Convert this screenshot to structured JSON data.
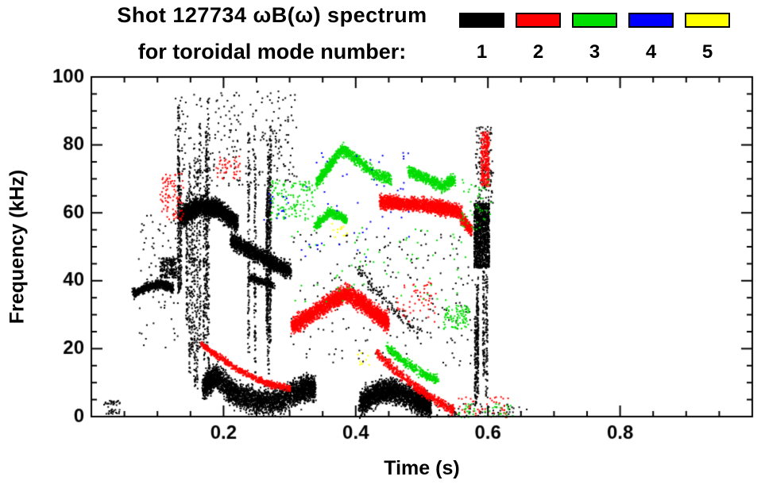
{
  "chart_data": {
    "type": "scatter",
    "title": "Shot 127734 ωB(ω) spectrum",
    "subtitle": "for toroidal mode number:",
    "xlabel": "Time (s)",
    "ylabel": "Frequency (kHz)",
    "xlim": [
      0.0,
      1.0
    ],
    "ylim": [
      0,
      100
    ],
    "xticks": [
      0.2,
      0.4,
      0.6,
      0.8
    ],
    "yticks": [
      0,
      20,
      40,
      60,
      80,
      100
    ],
    "x_minor_step": 0.05,
    "y_minor_step": 5,
    "legend_position": "top-right",
    "grid": false,
    "legend": [
      {
        "label": "1",
        "color": "#000000"
      },
      {
        "label": "2",
        "color": "#ff0000"
      },
      {
        "label": "3",
        "color": "#00dd00"
      },
      {
        "label": "4",
        "color": "#0000ff"
      },
      {
        "label": "5",
        "color": "#ffff00"
      }
    ],
    "features": [
      {
        "mode": 1,
        "shape": "specks",
        "t": [
          0.018,
          0.042
        ],
        "f": [
          1,
          5
        ],
        "n": 45,
        "size": 2
      },
      {
        "mode": 1,
        "shape": "path",
        "pts": [
          [
            0.062,
            36.5
          ],
          [
            0.085,
            38.5
          ],
          [
            0.105,
            39.2
          ],
          [
            0.122,
            38
          ]
        ],
        "sigma": 1.3,
        "n": 700,
        "size": 2
      },
      {
        "mode": 1,
        "shape": "blob",
        "t": [
          0.103,
          0.128
        ],
        "f": [
          41,
          47
        ],
        "n": 200,
        "size": 2
      },
      {
        "mode": 1,
        "shape": "vstreaks",
        "t": [
          0.105,
          0.178
        ],
        "f": [
          8,
          96
        ],
        "k": 13,
        "n": 1300,
        "size": 2
      },
      {
        "mode": 1,
        "shape": "specks",
        "t": [
          0.125,
          0.31
        ],
        "f": [
          68,
          96
        ],
        "n": 260,
        "size": 2
      },
      {
        "mode": 1,
        "shape": "path",
        "pts": [
          [
            0.134,
            59
          ],
          [
            0.16,
            62
          ],
          [
            0.19,
            61.5
          ],
          [
            0.22,
            57
          ]
        ],
        "sigma": 2.6,
        "n": 2300,
        "size": 2
      },
      {
        "mode": 1,
        "shape": "path",
        "pts": [
          [
            0.21,
            52
          ],
          [
            0.24,
            49
          ],
          [
            0.272,
            45.5
          ],
          [
            0.3,
            43
          ]
        ],
        "sigma": 2.2,
        "n": 1500,
        "size": 2
      },
      {
        "mode": 1,
        "shape": "path",
        "pts": [
          [
            0.238,
            41
          ],
          [
            0.275,
            39
          ]
        ],
        "sigma": 1.2,
        "n": 250,
        "size": 2
      },
      {
        "mode": 1,
        "shape": "path",
        "pts": [
          [
            0.168,
            9
          ],
          [
            0.188,
            12
          ],
          [
            0.215,
            7
          ],
          [
            0.25,
            4.5
          ],
          [
            0.285,
            5
          ],
          [
            0.315,
            8
          ],
          [
            0.337,
            9
          ]
        ],
        "sigma": 3.6,
        "n": 3200,
        "size": 2
      },
      {
        "mode": 1,
        "shape": "vstreaks",
        "t": [
          0.234,
          0.278
        ],
        "f": [
          12,
          90
        ],
        "k": 7,
        "n": 900,
        "size": 2
      },
      {
        "mode": 1,
        "shape": "specks",
        "t": [
          0.3,
          0.58
        ],
        "f": [
          15,
          55
        ],
        "n": 220,
        "size": 2
      },
      {
        "mode": 1,
        "shape": "path",
        "pts": [
          [
            0.4,
            44
          ],
          [
            0.45,
            33
          ],
          [
            0.5,
            24
          ]
        ],
        "sigma": 2.0,
        "n": 130,
        "size": 2
      },
      {
        "mode": 1,
        "shape": "path",
        "pts": [
          [
            0.405,
            4
          ],
          [
            0.43,
            7
          ],
          [
            0.458,
            8
          ],
          [
            0.49,
            5
          ],
          [
            0.512,
            3
          ]
        ],
        "sigma": 3.2,
        "n": 2500,
        "size": 2
      },
      {
        "mode": 1,
        "shape": "blob",
        "t": [
          0.578,
          0.601
        ],
        "f": [
          44,
          63
        ],
        "n": 1200,
        "size": 2
      },
      {
        "mode": 1,
        "shape": "vstreaks",
        "t": [
          0.578,
          0.602
        ],
        "f": [
          2,
          44
        ],
        "k": 5,
        "n": 450,
        "size": 2
      },
      {
        "mode": 1,
        "shape": "specks",
        "t": [
          0.58,
          0.607
        ],
        "f": [
          63,
          86
        ],
        "n": 130,
        "size": 2
      },
      {
        "mode": 1,
        "shape": "specks",
        "t": [
          0.52,
          0.66
        ],
        "f": [
          0,
          4
        ],
        "n": 60,
        "size": 2
      },
      {
        "mode": 1,
        "shape": "specks",
        "t": [
          0.07,
          0.13
        ],
        "f": [
          20,
          60
        ],
        "n": 80,
        "size": 2
      },
      {
        "mode": 2,
        "shape": "path",
        "pts": [
          [
            0.166,
            21.5
          ],
          [
            0.19,
            18
          ],
          [
            0.222,
            14
          ],
          [
            0.252,
            11
          ],
          [
            0.275,
            9.5
          ],
          [
            0.3,
            8.5
          ]
        ],
        "sigma": 0.9,
        "n": 700,
        "size": 2
      },
      {
        "mode": 2,
        "shape": "specks",
        "t": [
          0.103,
          0.138
        ],
        "f": [
          58,
          72
        ],
        "n": 90,
        "size": 2
      },
      {
        "mode": 2,
        "shape": "specks",
        "t": [
          0.188,
          0.225
        ],
        "f": [
          70,
          77
        ],
        "n": 45,
        "size": 2
      },
      {
        "mode": 2,
        "shape": "path",
        "pts": [
          [
            0.302,
            27
          ],
          [
            0.33,
            30
          ],
          [
            0.36,
            34
          ],
          [
            0.385,
            36.5
          ],
          [
            0.41,
            33.5
          ],
          [
            0.432,
            30
          ],
          [
            0.448,
            28
          ]
        ],
        "sigma": 2.4,
        "n": 2700,
        "size": 2
      },
      {
        "mode": 2,
        "shape": "path",
        "pts": [
          [
            0.436,
            63.5
          ],
          [
            0.47,
            63
          ],
          [
            0.52,
            62
          ],
          [
            0.558,
            60.5
          ]
        ],
        "sigma": 1.9,
        "n": 2000,
        "size": 2
      },
      {
        "mode": 2,
        "shape": "path",
        "pts": [
          [
            0.558,
            59
          ],
          [
            0.574,
            55
          ]
        ],
        "sigma": 1.6,
        "n": 220,
        "size": 2
      },
      {
        "mode": 2,
        "shape": "path",
        "pts": [
          [
            0.43,
            19
          ],
          [
            0.458,
            14
          ],
          [
            0.49,
            9
          ],
          [
            0.52,
            5
          ],
          [
            0.547,
            2
          ]
        ],
        "sigma": 1.3,
        "n": 550,
        "size": 2
      },
      {
        "mode": 2,
        "shape": "blob",
        "t": [
          0.588,
          0.601
        ],
        "f": [
          68,
          84
        ],
        "n": 270,
        "size": 2
      },
      {
        "mode": 2,
        "shape": "specks",
        "t": [
          0.46,
          0.52
        ],
        "f": [
          28,
          40
        ],
        "n": 55,
        "size": 2
      },
      {
        "mode": 2,
        "shape": "specks",
        "t": [
          0.54,
          0.63
        ],
        "f": [
          0,
          6
        ],
        "n": 55,
        "size": 2
      },
      {
        "mode": 3,
        "shape": "path",
        "pts": [
          [
            0.34,
            69
          ],
          [
            0.358,
            74
          ],
          [
            0.378,
            79
          ],
          [
            0.4,
            76
          ],
          [
            0.426,
            72
          ],
          [
            0.452,
            70
          ]
        ],
        "sigma": 1.6,
        "n": 950,
        "size": 2
      },
      {
        "mode": 3,
        "shape": "path",
        "pts": [
          [
            0.336,
            56
          ],
          [
            0.36,
            60.5
          ],
          [
            0.386,
            58
          ]
        ],
        "sigma": 1.3,
        "n": 380,
        "size": 2
      },
      {
        "mode": 3,
        "shape": "path",
        "pts": [
          [
            0.478,
            72.5
          ],
          [
            0.505,
            70.5
          ],
          [
            0.53,
            68
          ],
          [
            0.548,
            70
          ]
        ],
        "sigma": 1.7,
        "n": 620,
        "size": 2
      },
      {
        "mode": 3,
        "shape": "path",
        "pts": [
          [
            0.446,
            21
          ],
          [
            0.468,
            17
          ],
          [
            0.498,
            13
          ],
          [
            0.523,
            11
          ]
        ],
        "sigma": 1.3,
        "n": 380,
        "size": 2
      },
      {
        "mode": 3,
        "shape": "specks",
        "t": [
          0.27,
          0.337
        ],
        "f": [
          58,
          70
        ],
        "n": 130,
        "size": 2
      },
      {
        "mode": 3,
        "shape": "specks",
        "t": [
          0.532,
          0.57
        ],
        "f": [
          26,
          33
        ],
        "n": 95,
        "size": 2
      },
      {
        "mode": 3,
        "shape": "specks",
        "t": [
          0.3,
          0.57
        ],
        "f": [
          34,
          56
        ],
        "n": 65,
        "size": 2
      },
      {
        "mode": 3,
        "shape": "specks",
        "t": [
          0.555,
          0.605
        ],
        "f": [
          55,
          70
        ],
        "n": 45,
        "size": 2
      },
      {
        "mode": 3,
        "shape": "specks",
        "t": [
          0.55,
          0.64
        ],
        "f": [
          0,
          4
        ],
        "n": 40,
        "size": 2
      },
      {
        "mode": 4,
        "shape": "specks",
        "t": [
          0.315,
          0.48
        ],
        "f": [
          42,
          78
        ],
        "n": 48,
        "size": 2
      },
      {
        "mode": 4,
        "shape": "specks",
        "t": [
          0.255,
          0.3
        ],
        "f": [
          58,
          66
        ],
        "n": 14,
        "size": 2
      },
      {
        "mode": 5,
        "shape": "specks",
        "t": [
          0.363,
          0.386
        ],
        "f": [
          53,
          57
        ],
        "n": 12,
        "size": 2
      },
      {
        "mode": 5,
        "shape": "specks",
        "t": [
          0.4,
          0.425
        ],
        "f": [
          15,
          19
        ],
        "n": 9,
        "size": 2
      }
    ]
  }
}
